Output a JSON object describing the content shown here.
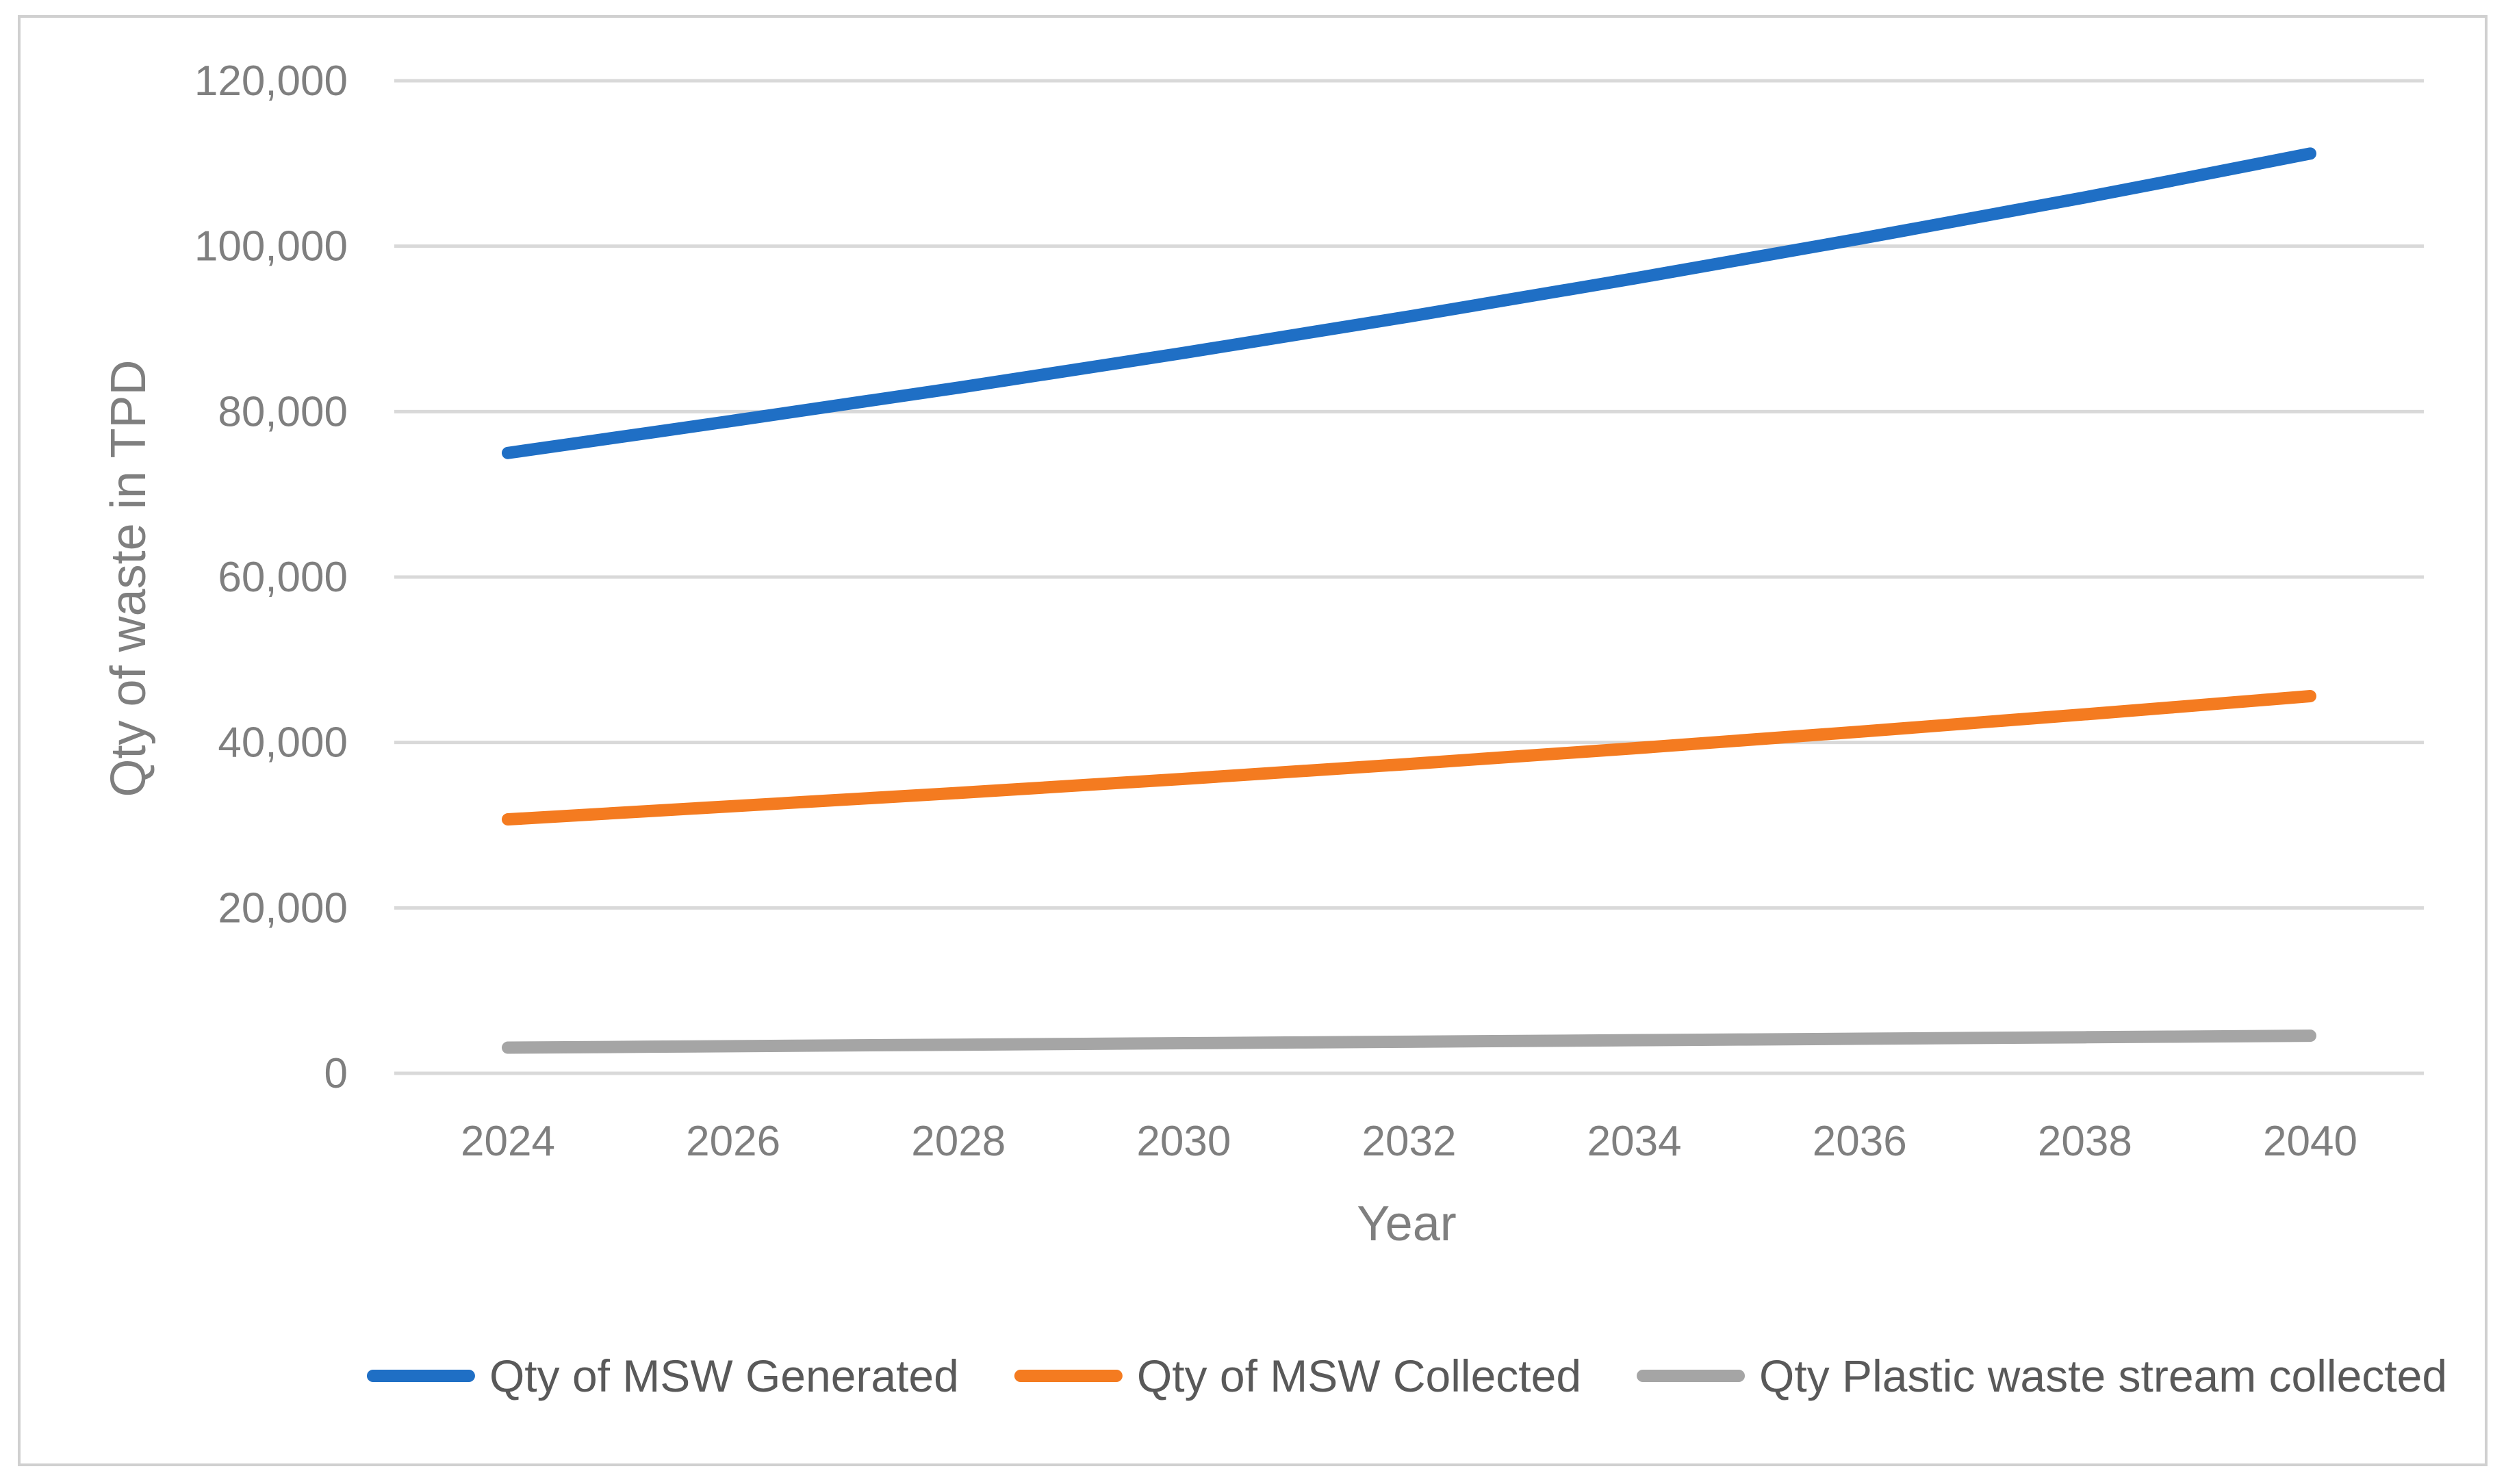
{
  "chart_data": {
    "type": "line",
    "title": "",
    "xlabel": "Year",
    "ylabel": "Qty of waste in TPD",
    "x": [
      2024,
      2026,
      2028,
      2030,
      2032,
      2034,
      2036,
      2038,
      2040
    ],
    "x_tick_labels": [
      "2024",
      "2026",
      "2028",
      "2030",
      "2032",
      "2034",
      "2036",
      "2038",
      "2040"
    ],
    "ylim": [
      0,
      120000
    ],
    "y_ticks": [
      0,
      20000,
      40000,
      60000,
      80000,
      100000,
      120000
    ],
    "y_tick_labels": [
      "0",
      "20,000",
      "40,000",
      "60,000",
      "80,000",
      "100,000",
      "120,000"
    ],
    "grid": true,
    "legend_position": "bottom",
    "series": [
      {
        "name": "Qty of MSW Generated",
        "color": "#1f6fc5",
        "values": [
          75000,
          78900,
          82900,
          87100,
          91500,
          96100,
          100900,
          105900,
          111200
        ]
      },
      {
        "name": "Qty of MSW Collected",
        "color": "#f47b20",
        "values": [
          30700,
          32300,
          33900,
          35600,
          37400,
          39300,
          41300,
          43400,
          45600
        ]
      },
      {
        "name": "Qty Plastic waste stream collected",
        "color": "#a5a5a5",
        "values": [
          3100,
          3280,
          3460,
          3640,
          3820,
          4000,
          4180,
          4360,
          4540
        ]
      }
    ]
  }
}
